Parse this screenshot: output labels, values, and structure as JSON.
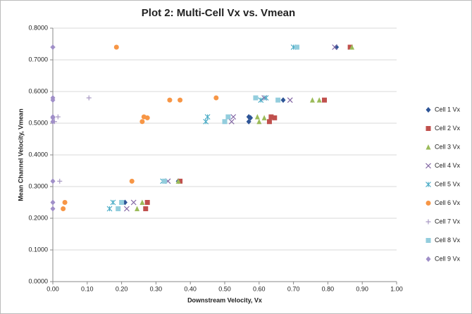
{
  "chart_data": {
    "type": "scatter",
    "title": "Plot 2: Multi-Cell Vx vs. Vmean",
    "x_label": "Downstream Velocity, Vx",
    "y_label": "Mean Channel Velocity, Vmean",
    "xlim": [
      0,
      1
    ],
    "ylim": [
      0,
      0.8
    ],
    "grid": true,
    "legend": "right",
    "xticks": [
      {
        "value": 0,
        "label": "0.00"
      },
      {
        "value": 0.1,
        "label": "0.10"
      },
      {
        "value": 0.2,
        "label": "0.20"
      },
      {
        "value": 0.3,
        "label": "0.30"
      },
      {
        "value": 0.4,
        "label": "0.40"
      },
      {
        "value": 0.5,
        "label": "0.50"
      },
      {
        "value": 0.6,
        "label": "0.60"
      },
      {
        "value": 0.7,
        "label": "0.70"
      },
      {
        "value": 0.8,
        "label": "0.80"
      },
      {
        "value": 0.9,
        "label": "0.90"
      },
      {
        "value": 1,
        "label": "1.00"
      }
    ],
    "yticks": [
      {
        "value": 0,
        "label": "0.0000"
      },
      {
        "value": 0.1,
        "label": "0.1000"
      },
      {
        "value": 0.2,
        "label": "0.2000"
      },
      {
        "value": 0.3,
        "label": "0.3000"
      },
      {
        "value": 0.4,
        "label": "0.4000"
      },
      {
        "value": 0.5,
        "label": "0.5000"
      },
      {
        "value": 0.6,
        "label": "0.6000"
      },
      {
        "value": 0.7,
        "label": "0.7000"
      },
      {
        "value": 0.8,
        "label": "0.8000"
      }
    ],
    "series": [
      {
        "name": "Cell 1 Vx",
        "color": "#2e5597",
        "marker": "diamond",
        "x": [
          0.825,
          0.67,
          0.57,
          0.575,
          0.57,
          0.365,
          0.21
        ],
        "values": [
          0.74,
          0.573,
          0.52,
          0.517,
          0.505,
          0.317,
          0.25
        ]
      },
      {
        "name": "Cell 2 Vx",
        "color": "#c0504d",
        "marker": "square",
        "x": [
          0.865,
          0.79,
          0.635,
          0.645,
          0.63,
          0.37,
          0.275,
          0.27
        ],
        "values": [
          0.74,
          0.573,
          0.52,
          0.517,
          0.505,
          0.317,
          0.25,
          0.23
        ]
      },
      {
        "name": "Cell 3 Vx",
        "color": "#9bbb59",
        "marker": "triangle",
        "x": [
          0.87,
          0.775,
          0.755,
          0.595,
          0.615,
          0.6,
          0.365,
          0.26,
          0.245
        ],
        "values": [
          0.74,
          0.573,
          0.573,
          0.52,
          0.517,
          0.505,
          0.317,
          0.25,
          0.23
        ]
      },
      {
        "name": "Cell 4 Vx",
        "color": "#8064a2",
        "marker": "x",
        "x": [
          0.82,
          0.69,
          0.615,
          0.525,
          0.52,
          0.335,
          0.235,
          0.215
        ],
        "values": [
          0.74,
          0.573,
          0.58,
          0.52,
          0.505,
          0.317,
          0.25,
          0.23
        ]
      },
      {
        "name": "Cell 5 Vx",
        "color": "#4bacc6",
        "marker": "star",
        "x": [
          0.7,
          0.62,
          0.605,
          0.45,
          0.445,
          0.32,
          0.175,
          0.165
        ],
        "values": [
          0.74,
          0.58,
          0.573,
          0.52,
          0.505,
          0.317,
          0.25,
          0.23
        ]
      },
      {
        "name": "Cell 6 Vx",
        "color": "#f79646",
        "marker": "circle",
        "x": [
          0.185,
          0.475,
          0.34,
          0.37,
          0.265,
          0.275,
          0.26,
          0.23,
          0.035,
          0.03
        ],
        "values": [
          0.74,
          0.58,
          0.573,
          0.573,
          0.52,
          0.517,
          0.505,
          0.317,
          0.25,
          0.23
        ]
      },
      {
        "name": "Cell 7 Vx",
        "color": "#a99bc4",
        "marker": "plus",
        "x": [
          0,
          0.105,
          0.015,
          0.005,
          0.02
        ],
        "values": [
          0.74,
          0.58,
          0.52,
          0.505,
          0.317
        ]
      },
      {
        "name": "Cell 8 Vx",
        "color": "#93cddd",
        "marker": "square",
        "x": [
          0.71,
          0.59,
          0.655,
          0.51,
          0.5,
          0.325,
          0.2,
          0.19
        ],
        "values": [
          0.74,
          0.58,
          0.573,
          0.52,
          0.505,
          0.317,
          0.25,
          0.23
        ]
      },
      {
        "name": "Cell 9 Vx",
        "color": "#a08fc8",
        "marker": "diamond",
        "x": [
          0,
          0,
          0,
          0,
          0,
          0,
          0,
          0,
          0
        ],
        "values": [
          0.74,
          0.58,
          0.573,
          0.52,
          0.517,
          0.505,
          0.317,
          0.25,
          0.23
        ]
      }
    ]
  }
}
